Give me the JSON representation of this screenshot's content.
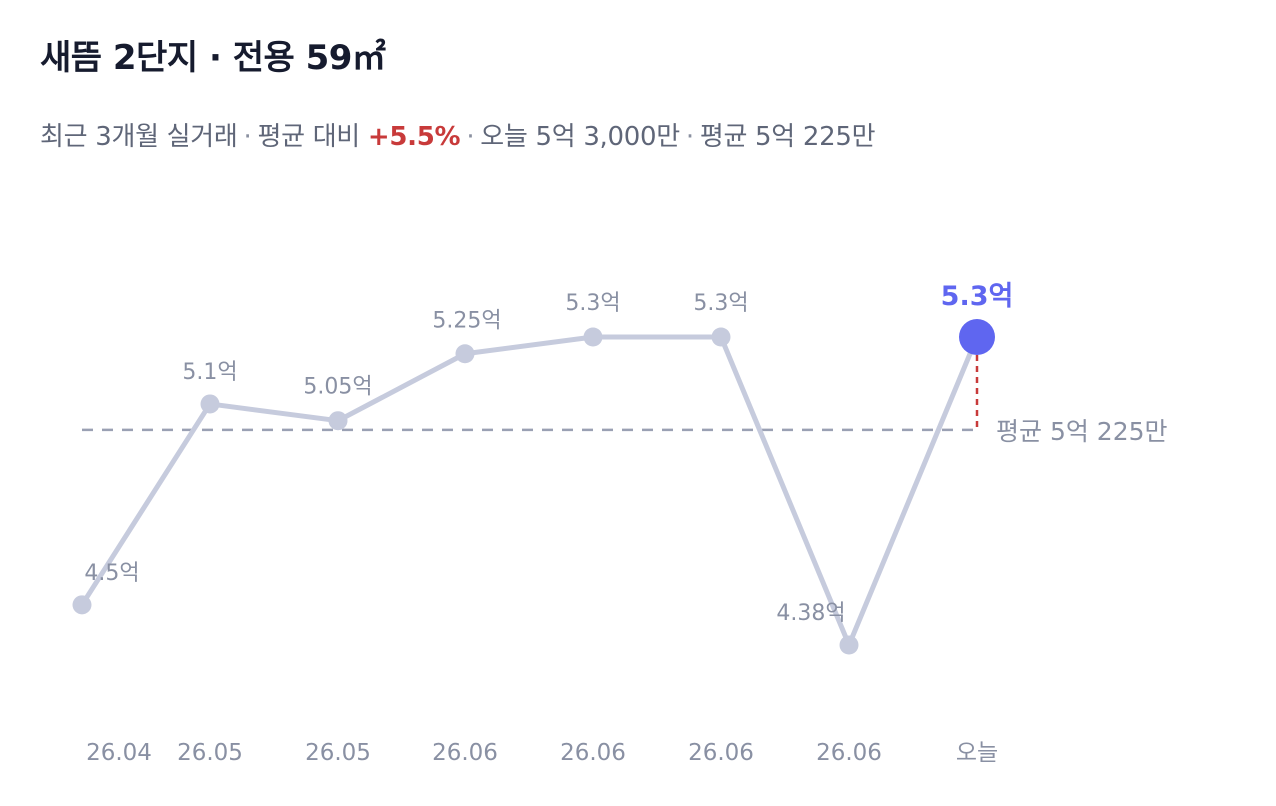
{
  "header": {
    "title": "새뜸 2단지 · 전용 59㎡",
    "subtitle": {
      "prefix": "최근 3개월 실거래",
      "compare_label": "평균 대비",
      "change": "+5.5%",
      "today": "오늘 5억 3,000만",
      "average": "평균 5억 225만"
    }
  },
  "chart_data": {
    "type": "line",
    "title": "새뜸 2단지 · 전용 59㎡",
    "x": [
      "26.04",
      "26.05",
      "26.05",
      "26.06",
      "26.06",
      "26.06",
      "26.06",
      "오늘"
    ],
    "series": [
      {
        "values": [
          4.5,
          5.1,
          5.05,
          5.25,
          5.3,
          5.3,
          4.38,
          5.3
        ],
        "labels": [
          "4.5억",
          "5.1억",
          "5.05억",
          "5.25억",
          "5.3억",
          "5.3억",
          "4.38억",
          "5.3억"
        ]
      }
    ],
    "reference_line": {
      "value": 5.0225,
      "label": "평균 5억 225만",
      "style": "dashed"
    },
    "highlight": {
      "index": 7,
      "label": "5.3억"
    },
    "ylim": [
      4.2,
      5.6
    ],
    "grid": false,
    "colors": {
      "line": "#c6cbdd",
      "current": "#5f66f0",
      "avg_line": "#9aa0b3",
      "drop_line": "#c83a3a",
      "up": "#c83a3a"
    }
  }
}
